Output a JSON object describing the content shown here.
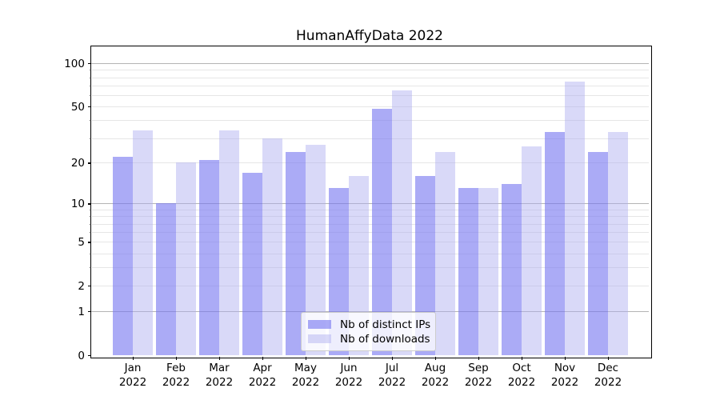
{
  "title": "HumanAffyData 2022",
  "chart_data": {
    "type": "bar",
    "title": "HumanAffyData 2022",
    "categories": [
      "Jan 2022",
      "Feb 2022",
      "Mar 2022",
      "Apr 2022",
      "May 2022",
      "Jun 2022",
      "Jul 2022",
      "Aug 2022",
      "Sep 2022",
      "Oct 2022",
      "Nov 2022",
      "Dec 2022"
    ],
    "series": [
      {
        "name": "Nb of distinct IPs",
        "color": "rgba(120,120,240,0.62)",
        "values": [
          22,
          10,
          21,
          17,
          24,
          13,
          48,
          16,
          13,
          14,
          33,
          24
        ]
      },
      {
        "name": "Nb of downloads",
        "color": "rgba(170,170,240,0.45)",
        "values": [
          34,
          20,
          34,
          30,
          27,
          16,
          65,
          24,
          13,
          26,
          75,
          33
        ]
      }
    ],
    "yscale": "log1p",
    "ylim": [
      0,
      131
    ],
    "ytick_labels": [
      "0",
      "1",
      "2",
      "5",
      "10",
      "20",
      "50",
      "100"
    ],
    "ytick_values": [
      0,
      1,
      2,
      5,
      10,
      20,
      50,
      100
    ],
    "major_grid_values": [
      1,
      10,
      100
    ],
    "minor_grid_values": [
      2,
      3,
      4,
      5,
      6,
      7,
      8,
      9,
      20,
      30,
      40,
      50,
      60,
      70,
      80,
      90
    ],
    "grid": "on",
    "legend_position": "bottom-center",
    "xlabel": "",
    "ylabel": ""
  },
  "colors": {
    "bar_dark": "rgba(120,120,240,0.62)",
    "bar_light": "rgba(170,170,240,0.45)",
    "major_grid": "#b4b4b4",
    "minor_grid": "#e6e6e6",
    "spine": "#000000",
    "text": "#111111",
    "legend_border": "#cccccc",
    "legend_background": "rgba(255,255,255,0.8)",
    "background": "#ffffff"
  }
}
